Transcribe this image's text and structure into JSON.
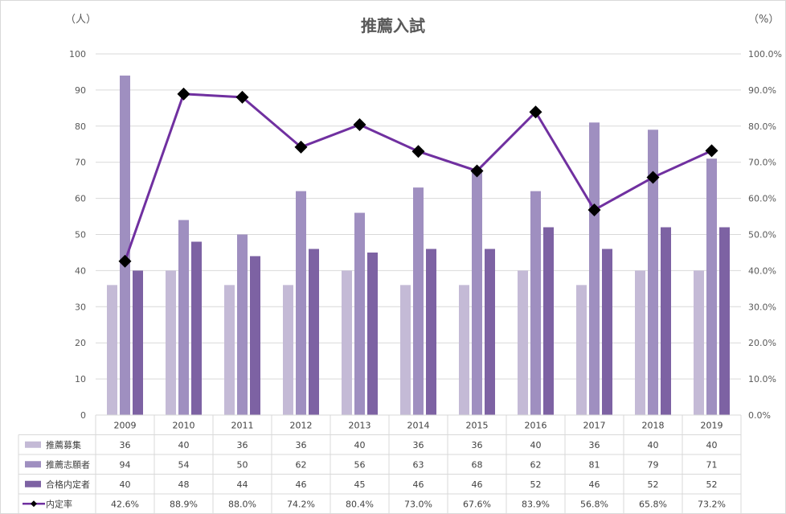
{
  "chart_data": {
    "type": "bar",
    "title": "推薦入試",
    "y_left_unit": "（人）",
    "y_right_unit": "（%）",
    "ylim": [
      0,
      100
    ],
    "y2lim": [
      0,
      100
    ],
    "y_ticks": [
      "0",
      "10",
      "20",
      "30",
      "40",
      "50",
      "60",
      "70",
      "80",
      "90",
      "100"
    ],
    "y2_ticks": [
      "0.0%",
      "10.0%",
      "20.0%",
      "30.0%",
      "40.0%",
      "50.0%",
      "60.0%",
      "70.0%",
      "80.0%",
      "90.0%",
      "100.0%"
    ],
    "categories": [
      "2009",
      "2010",
      "2011",
      "2012",
      "2013",
      "2014",
      "2015",
      "2016",
      "2017",
      "2018",
      "2019"
    ],
    "grid": true,
    "legend": "data-table",
    "series": [
      {
        "name": "推薦募集",
        "type": "bar",
        "color": "#c4bad6",
        "values": [
          36,
          40,
          36,
          36,
          40,
          36,
          36,
          40,
          36,
          40,
          40
        ]
      },
      {
        "name": "推薦志願者",
        "type": "bar",
        "color": "#9f8fc0",
        "values": [
          94,
          54,
          50,
          62,
          56,
          63,
          68,
          62,
          81,
          79,
          71
        ]
      },
      {
        "name": "合格内定者",
        "type": "bar",
        "color": "#7d62a3",
        "values": [
          40,
          48,
          44,
          46,
          45,
          46,
          46,
          52,
          46,
          52,
          52
        ]
      },
      {
        "name": "内定率",
        "type": "line",
        "axis": "right",
        "color": "#7030a0",
        "marker_color": "#000000",
        "values": [
          42.6,
          88.9,
          88.0,
          74.2,
          80.4,
          73.0,
          67.6,
          83.9,
          56.8,
          65.8,
          73.2
        ],
        "labels": [
          "42.6%",
          "88.9%",
          "88.0%",
          "74.2%",
          "80.4%",
          "73.0%",
          "67.6%",
          "83.9%",
          "56.8%",
          "65.8%",
          "73.2%"
        ]
      }
    ]
  }
}
